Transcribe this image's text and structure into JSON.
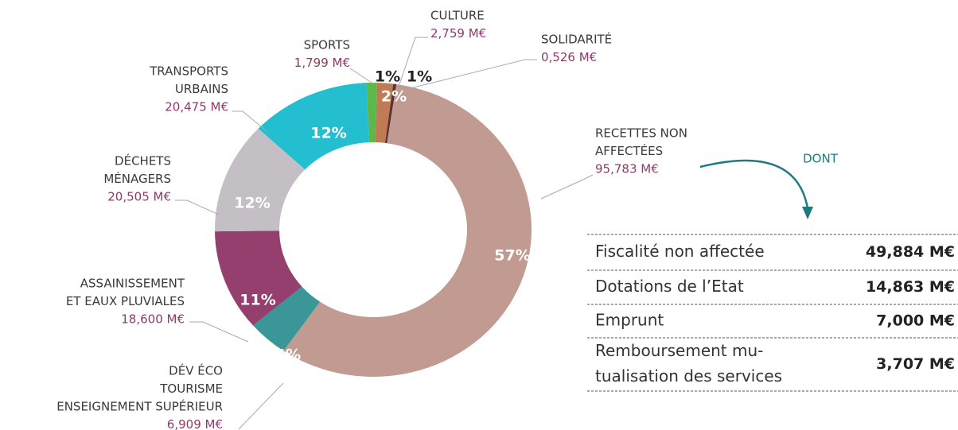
{
  "chart_data": {
    "type": "donut",
    "categories": [
      [
        "SPORTS"
      ],
      [
        "CULTURE"
      ],
      [
        "SOLIDARITÉ"
      ],
      [
        "RECETTES NON",
        "AFFECTÉES"
      ],
      [
        "DÉV ÉCO",
        "TOURISME",
        "ENSEIGNEMENT SUPÉRIEUR"
      ],
      [
        "ASSAINISSEMENT",
        "ET EAUX PLUVIALES"
      ],
      [
        "DÉCHETS",
        "MÉNAGERS"
      ],
      [
        "TRANSPORTS",
        "URBAINS"
      ]
    ],
    "values": [
      1.799,
      2.759,
      0.526,
      95.783,
      6.909,
      18.6,
      20.505,
      20.475
    ],
    "value_labels": [
      "1,799 M€",
      "2,759 M€",
      "0,526 M€",
      "95,783 M€",
      "6,909 M€",
      "18,600 M€",
      "20,505 M€",
      "20,475 M€"
    ],
    "percentages": [
      1,
      2,
      1,
      57,
      4,
      11,
      12,
      12
    ],
    "percent_labels": [
      "1%",
      "2%",
      "1%",
      "57%",
      "4%",
      "11%",
      "12%",
      "12%"
    ],
    "colors": [
      "#5cb84b",
      "#c07b55",
      "#5a3232",
      "#c19b91",
      "#3a9697",
      "#943f6e",
      "#c4bfc5",
      "#23bfd0"
    ]
  },
  "breakdown": {
    "annotation": "DONT",
    "rows": [
      {
        "label": [
          "Fiscalité non affectée"
        ],
        "amount": "49,884 M€"
      },
      {
        "label": [
          "Dotations de l’Etat"
        ],
        "amount": "14,863 M€"
      },
      {
        "label": [
          "Emprunt"
        ],
        "amount": "7,000 M€"
      },
      {
        "label": [
          "Remboursement mu-",
          "tualisation des services"
        ],
        "amount": "3,707 M€"
      }
    ]
  }
}
